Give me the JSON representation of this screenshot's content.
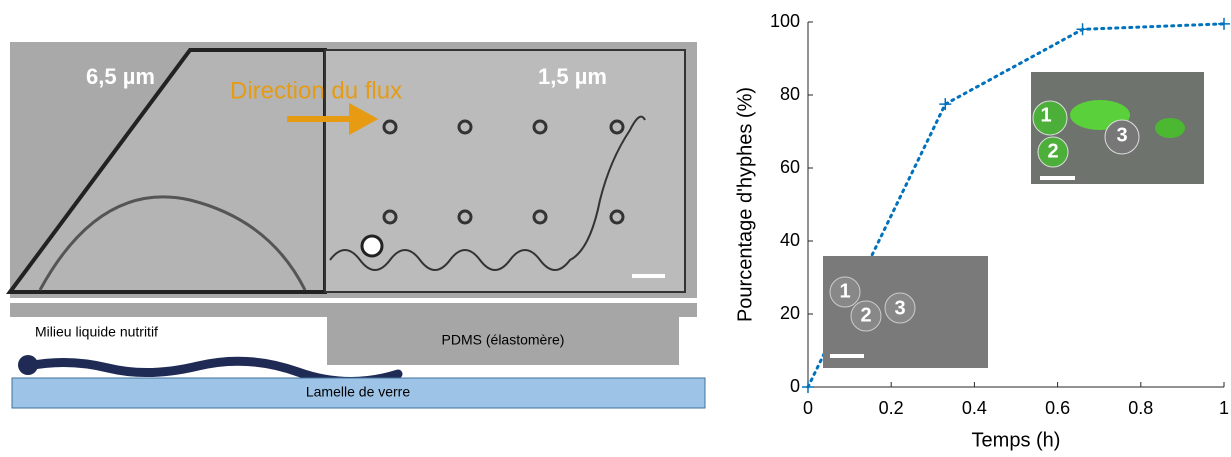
{
  "figure": {
    "image_labels": {
      "left_width": "6,5 µm",
      "flow": "Direction du flux",
      "right_width": "1,5 µm"
    },
    "schematic": {
      "medium": "Milieu liquide nutritif",
      "pdms": "PDMS (élastomère)",
      "glass": "Lamelle de verre"
    },
    "inset_top": [
      "1",
      "2",
      "3"
    ],
    "inset_bottom": [
      "1",
      "2",
      "3"
    ]
  },
  "chart_data": {
    "type": "line",
    "xlabel": "Temps (h)",
    "ylabel": "Pourcentage d'hyphes (%)",
    "x": [
      0,
      0.33,
      0.66,
      1
    ],
    "values": [
      0,
      77.5,
      98,
      99.5
    ],
    "color": "#0072bd",
    "xlim": [
      0,
      1
    ],
    "ylim": [
      0,
      100
    ],
    "xticks": [
      0,
      0.2,
      0.4,
      0.6,
      0.8,
      1
    ],
    "yticks": [
      0,
      20,
      40,
      60,
      80,
      100
    ]
  }
}
